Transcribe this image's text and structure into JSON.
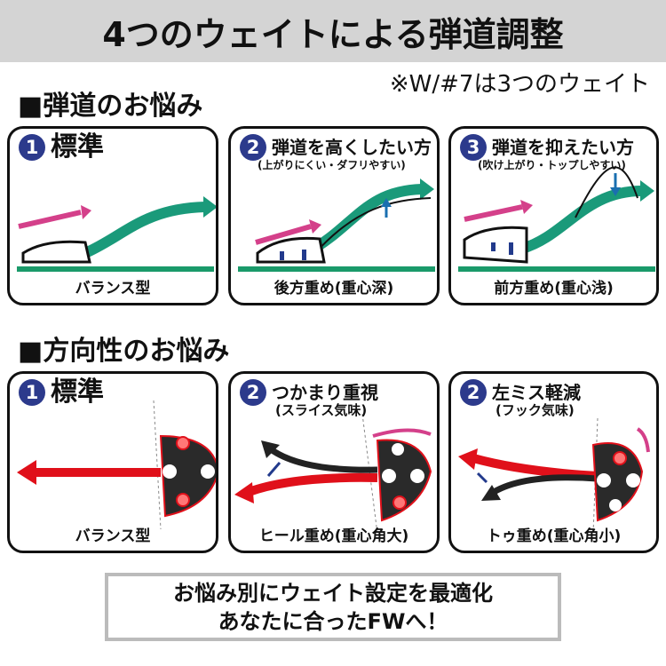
{
  "title": "4つのウェイトによる弾道調整",
  "note": "※W/#7は3つのウェイト",
  "section1": {
    "heading": "■弾道のお悩み",
    "panels": [
      {
        "num": "1",
        "title": "標準",
        "sub": "",
        "caption": "バランス型"
      },
      {
        "num": "2",
        "title": "弾道を高くしたい方",
        "sub": "(上がりにくい・ダフリやすい)",
        "caption": "後方重め(重心深)"
      },
      {
        "num": "3",
        "title": "弾道を抑えたい方",
        "sub": "(吹け上がり・トップしやすい)",
        "caption": "前方重め(重心浅)"
      }
    ]
  },
  "section2": {
    "heading": "■方向性のお悩み",
    "panels": [
      {
        "num": "1",
        "title": "標準",
        "sub": "",
        "caption": "バランス型"
      },
      {
        "num": "2",
        "title": "つかまり重視",
        "sub": "(スライス気味)",
        "caption": "ヒール重め(重心角大)"
      },
      {
        "num": "2",
        "title": "左ミス軽減",
        "sub": "(フック気味)",
        "caption": "トゥ重め(重心角小)"
      }
    ]
  },
  "bottom": {
    "line1": "お悩み別にウェイト設定を最適化",
    "line2": "あなたに合ったFWへ！"
  },
  "colors": {
    "accent_number": "#2c3a8c",
    "trajectory": "#1a9a7a",
    "ground": "#1a9a6a",
    "arrow_pink": "#d4408a",
    "arrow_red": "#e0101a"
  }
}
